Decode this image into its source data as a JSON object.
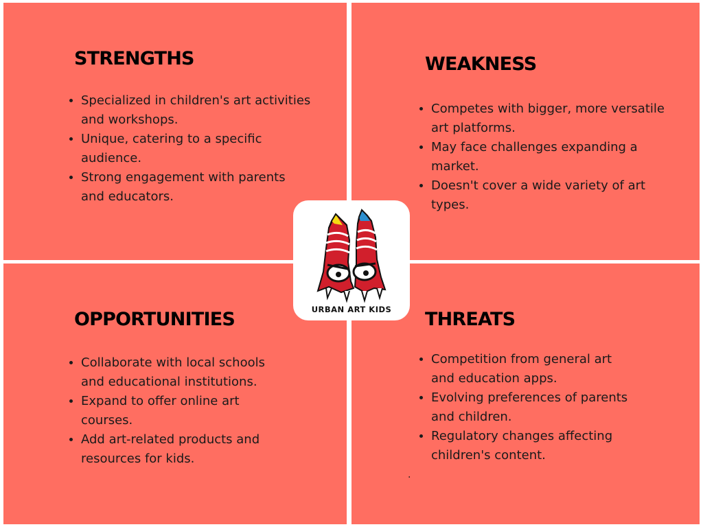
{
  "colors": {
    "quadrant_bg": "#ff6e61",
    "title": "#000000",
    "text": "#1a1a1a",
    "logo_red": "#d11f2c",
    "logo_yellow": "#f5dc12",
    "logo_blue": "#2d8fcf"
  },
  "quadrants": {
    "strengths": {
      "title": "STRENGTHS",
      "items": [
        {
          "lines": [
            "Specialized in children's art activities",
            "and workshops."
          ]
        },
        {
          "lines": [
            "Unique, catering to a specific",
            "audience."
          ]
        },
        {
          "lines": [
            "Strong engagement with parents",
            "and educators."
          ]
        }
      ]
    },
    "weakness": {
      "title": "WEAKNESS",
      "items": [
        {
          "lines": [
            "Competes with bigger, more versatile",
            "art platforms."
          ]
        },
        {
          "lines": [
            "May face challenges expanding a",
            "market."
          ]
        },
        {
          "lines": [
            "Doesn't cover a wide variety of art",
            "types."
          ]
        }
      ]
    },
    "opportunities": {
      "title": "OPPORTUNITIES",
      "items": [
        {
          "lines": [
            "Collaborate with local schools",
            "and educational institutions."
          ]
        },
        {
          "lines": [
            "Expand to offer online art",
            "courses."
          ]
        },
        {
          "lines": [
            "Add art-related products and",
            "resources for kids."
          ]
        }
      ]
    },
    "threats": {
      "title": "THREATS",
      "items": [
        {
          "lines": [
            "Competition from general art",
            "and education apps."
          ]
        },
        {
          "lines": [
            "Evolving preferences of parents",
            "and children."
          ]
        },
        {
          "lines": [
            "Regulatory changes affecting",
            "children's content."
          ]
        }
      ]
    }
  },
  "stray_mark": ".",
  "logo": {
    "text": "URBAN ART KIDS",
    "icon": "crayon-monster-logo-icon"
  }
}
